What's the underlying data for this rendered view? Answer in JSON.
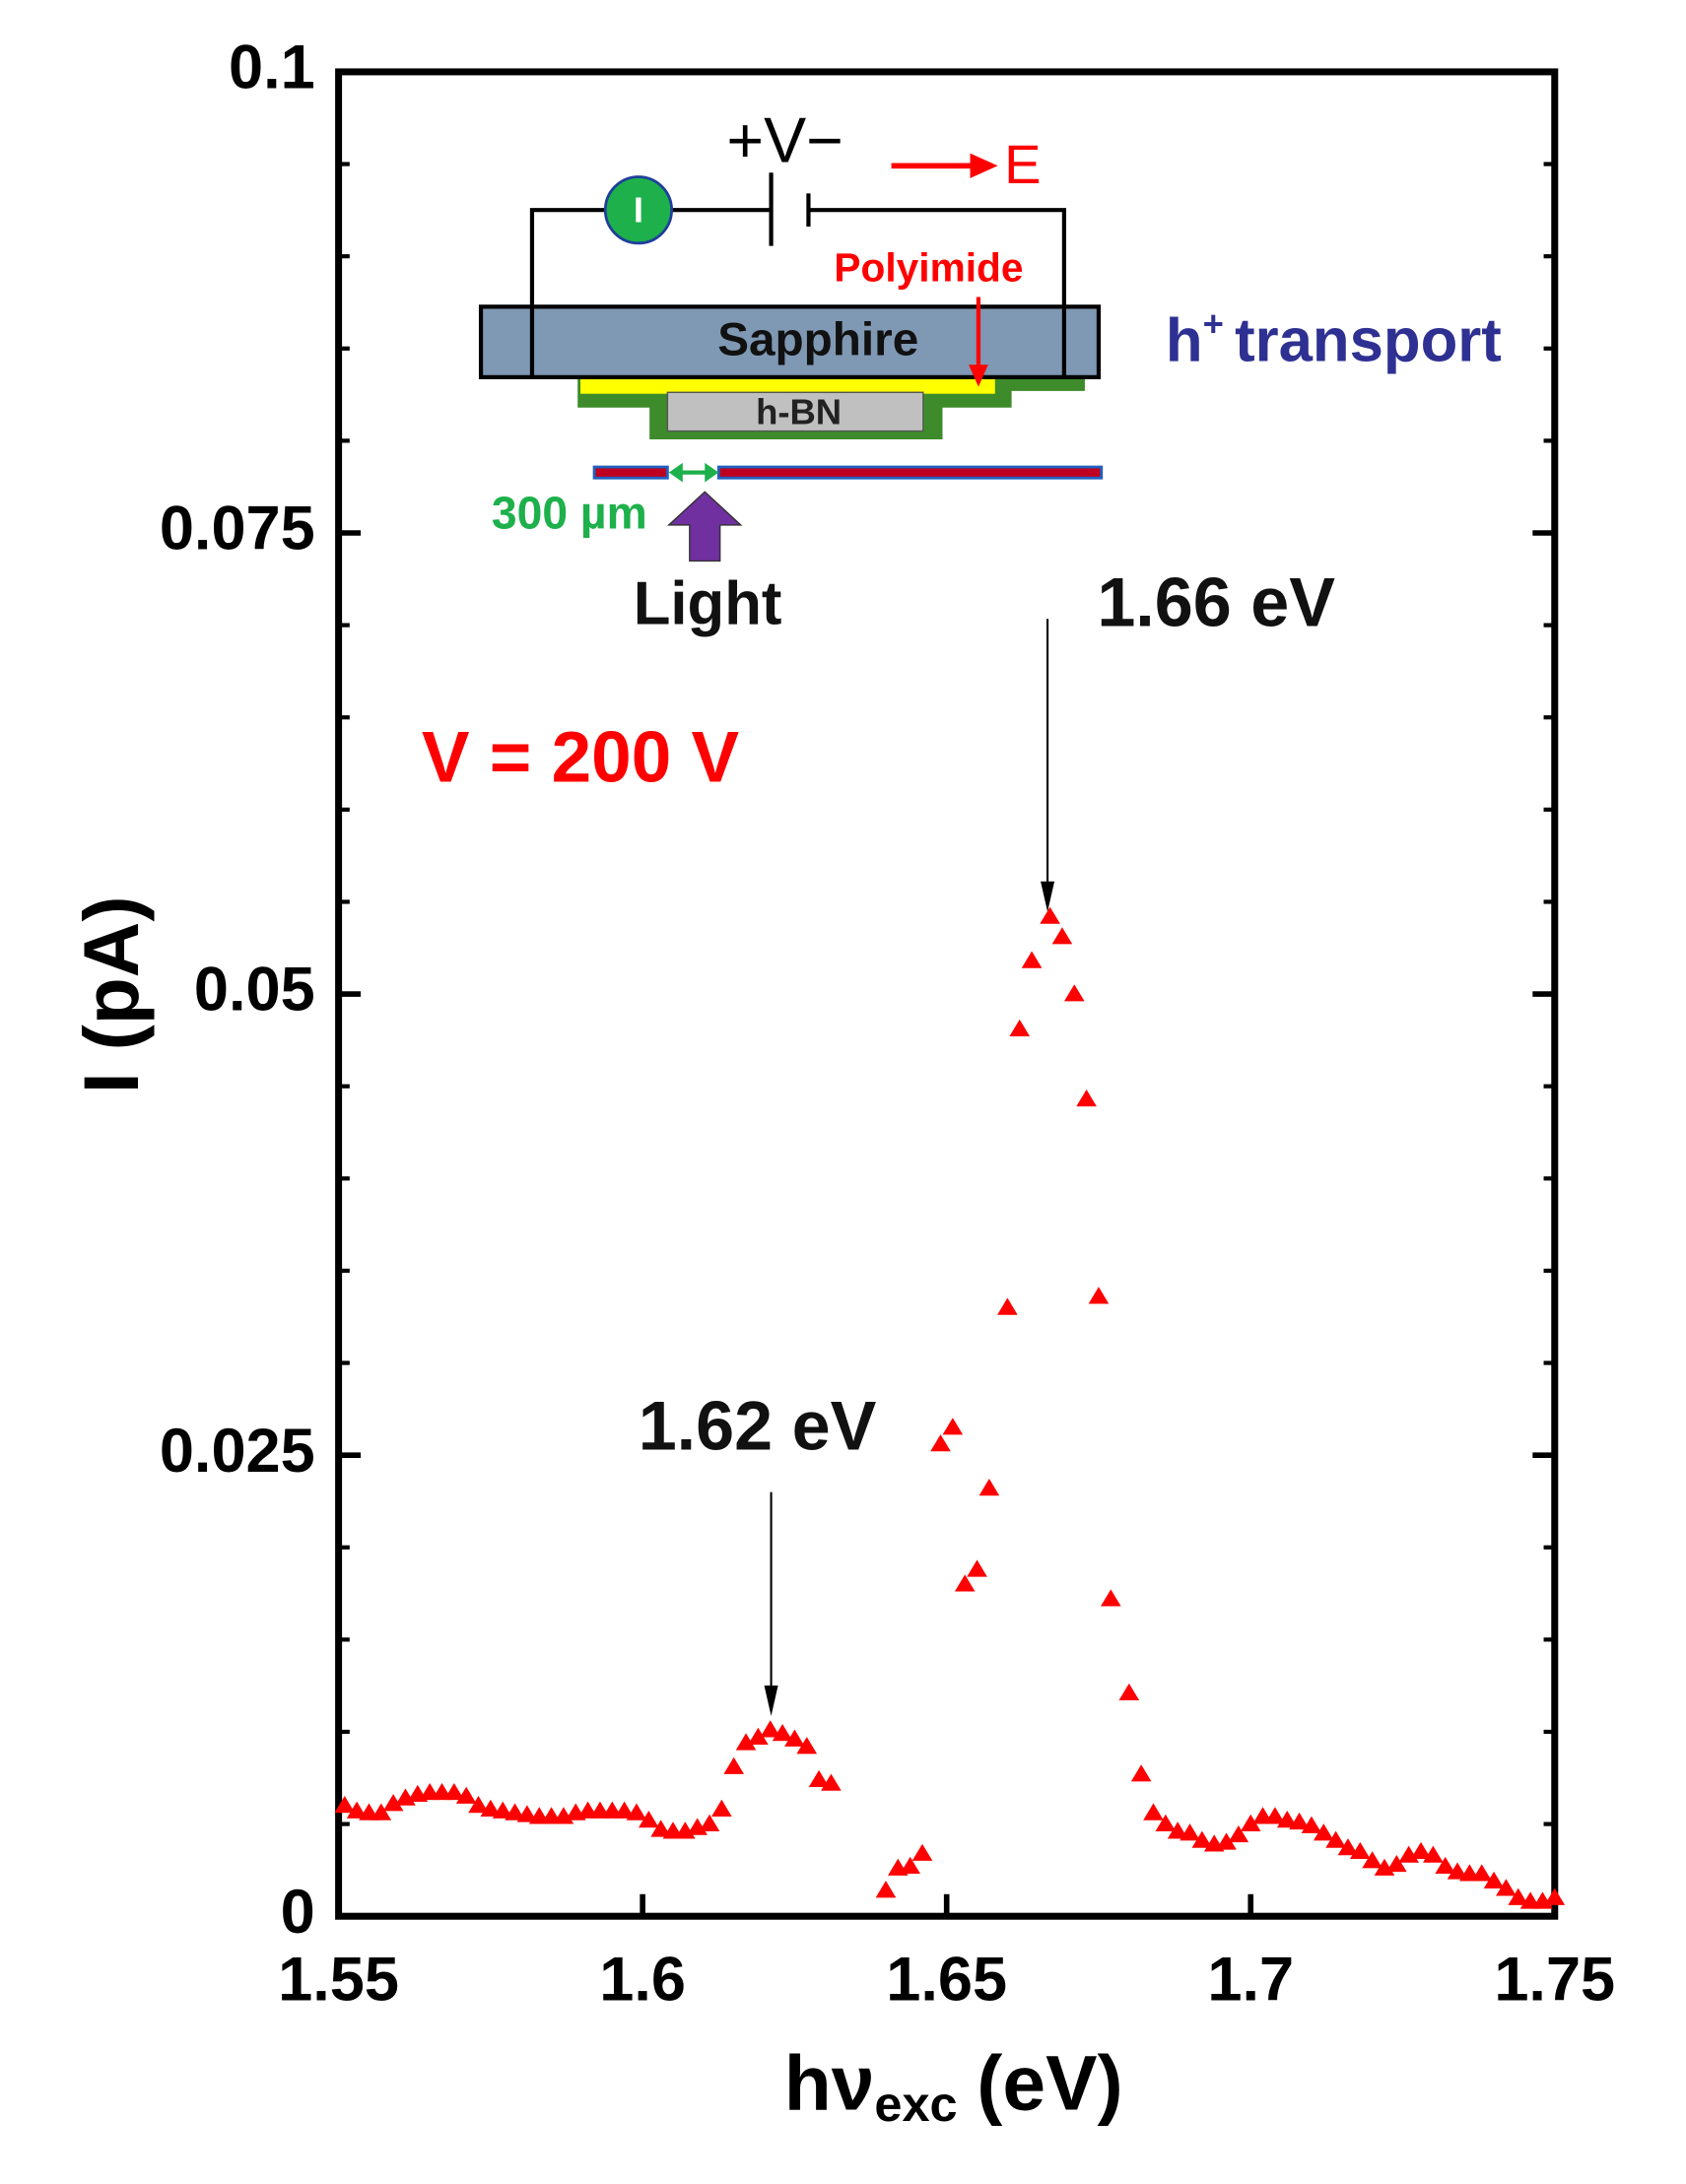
{
  "chart_data": {
    "type": "scatter",
    "y_label": "I (pA)",
    "x_label": "hν",
    "x_label_sub": "exc",
    "x_label_unit": "(eV)",
    "xlim": [
      1.55,
      1.75
    ],
    "ylim": [
      0,
      0.1
    ],
    "xticks": [
      1.55,
      1.6,
      1.65,
      1.7,
      1.75
    ],
    "yticks": [
      0,
      0.025,
      0.05,
      0.075,
      0.1
    ],
    "y_minor_ticks": [
      0.005,
      0.01,
      0.015,
      0.02,
      0.03,
      0.035,
      0.04,
      0.045,
      0.055,
      0.06,
      0.065,
      0.07,
      0.08,
      0.085,
      0.09,
      0.095
    ],
    "color": "#ff0000",
    "x": [
      1.551,
      1.553,
      1.555,
      1.557,
      1.559,
      1.561,
      1.563,
      1.565,
      1.567,
      1.569,
      1.571,
      1.573,
      1.575,
      1.577,
      1.579,
      1.581,
      1.583,
      1.585,
      1.587,
      1.589,
      1.591,
      1.593,
      1.595,
      1.597,
      1.599,
      1.601,
      1.603,
      1.605,
      1.607,
      1.609,
      1.611,
      1.613,
      1.615,
      1.617,
      1.619,
      1.621,
      1.623,
      1.625,
      1.627,
      1.629,
      1.631,
      1.64,
      1.642,
      1.644,
      1.646,
      1.649,
      1.651,
      1.653,
      1.655,
      1.657,
      1.66,
      1.662,
      1.664,
      1.667,
      1.669,
      1.671,
      1.673,
      1.675,
      1.677,
      1.68,
      1.682,
      1.684,
      1.686,
      1.688,
      1.69,
      1.692,
      1.694,
      1.696,
      1.698,
      1.7,
      1.702,
      1.704,
      1.706,
      1.708,
      1.71,
      1.712,
      1.714,
      1.716,
      1.718,
      1.72,
      1.722,
      1.724,
      1.726,
      1.728,
      1.73,
      1.732,
      1.734,
      1.736,
      1.738,
      1.74,
      1.742,
      1.744,
      1.746,
      1.748,
      1.75
    ],
    "values": [
      0.006,
      0.0057,
      0.0056,
      0.0056,
      0.0061,
      0.0064,
      0.0066,
      0.0067,
      0.0067,
      0.0067,
      0.0065,
      0.006,
      0.0058,
      0.0057,
      0.0056,
      0.0055,
      0.0054,
      0.0054,
      0.0054,
      0.0056,
      0.0057,
      0.0057,
      0.0057,
      0.0057,
      0.0056,
      0.0052,
      0.0047,
      0.0046,
      0.0046,
      0.0048,
      0.005,
      0.0058,
      0.0081,
      0.0094,
      0.0097,
      0.0101,
      0.0099,
      0.0096,
      0.0092,
      0.0074,
      0.0072,
      0.0014,
      0.0026,
      0.0027,
      0.0034,
      0.0256,
      0.0265,
      0.018,
      0.0188,
      0.0232,
      0.033,
      0.0481,
      0.0518,
      0.0542,
      0.0531,
      0.05,
      0.0443,
      0.0336,
      0.0172,
      0.0121,
      0.0077,
      0.0056,
      0.005,
      0.0046,
      0.0045,
      0.0041,
      0.0039,
      0.004,
      0.0044,
      0.005,
      0.0054,
      0.0054,
      0.0052,
      0.0051,
      0.0049,
      0.0045,
      0.0041,
      0.0037,
      0.0035,
      0.003,
      0.0026,
      0.0028,
      0.0033,
      0.0035,
      0.0033,
      0.0027,
      0.0024,
      0.0023,
      0.0023,
      0.0019,
      0.0015,
      0.001,
      0.0008,
      0.0008,
      0.001
    ],
    "annotations": [
      "1.66 eV",
      "1.62 eV",
      "V = 200 V"
    ],
    "inset": {
      "voltage": "+V−",
      "field": "E",
      "meter": "I",
      "polyimide": "Polyimide",
      "sapphire": "Sapphire",
      "hbn": "h-BN",
      "carrier": "h",
      "carrier_sup": "+",
      "transport": "transport",
      "gap": "300 µm",
      "light": "Light"
    }
  }
}
